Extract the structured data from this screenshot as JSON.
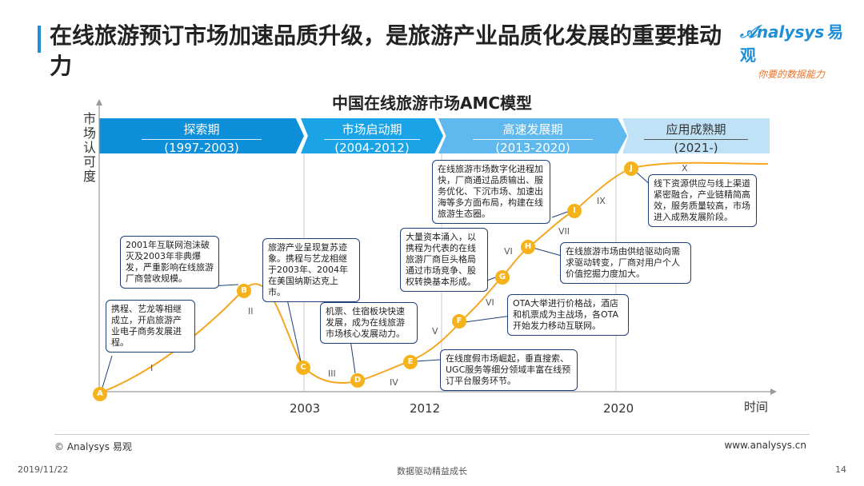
{
  "header": {
    "title": "在线旅游预订市场加速品质升级，是旅游产业品质化发展的重要推动力",
    "logo_text": "nalysys",
    "logo_cn": "易观",
    "logo_slogan": "你要的数据能力"
  },
  "diagram": {
    "title": "中国在线旅游市场AMC模型",
    "y_axis_label": "市场认可度",
    "x_axis_label": "时间",
    "phases": [
      {
        "name": "探索期",
        "years": "(1997-2003)",
        "color": "#0d8fd9"
      },
      {
        "name": "市场启动期",
        "years": "(2004-2012)",
        "color": "#1aa3e6"
      },
      {
        "name": "高速发展期",
        "years": "(2013-2020)",
        "color": "#5fb8ee"
      },
      {
        "name": "应用成熟期",
        "years": "(2021-)",
        "color": "#bfe2f7"
      }
    ],
    "years": [
      "2003",
      "2012",
      "2020"
    ],
    "roman": [
      "I",
      "II",
      "III",
      "IV",
      "V",
      "VI",
      "VI",
      "VII",
      "IX",
      "X"
    ],
    "markers": [
      "A",
      "B",
      "C",
      "D",
      "E",
      "F",
      "G",
      "H",
      "I",
      "J"
    ],
    "callouts": [
      {
        "id": "A",
        "text": "携程、艺龙等相继成立，开启旅游产业电子商务发展进程。"
      },
      {
        "id": "B",
        "text": "2001年互联网泡沫破灭及2003年非典爆发，严重影响在线旅游厂商营收规模。"
      },
      {
        "id": "C",
        "text": "旅游产业呈现复苏迹象。携程与艺龙相继于2003年、2004年在美国纳斯达克上市。"
      },
      {
        "id": "D",
        "text": "机票、住宿板块快速发展，成为在线旅游市场核心发展动力。"
      },
      {
        "id": "E",
        "text": "在线度假市场崛起，垂直搜索、UGC服务等细分领域丰富在线预订平台服务环节。"
      },
      {
        "id": "F",
        "text": "OTA大举进行价格战，酒店和机票成为主战场，各OTA开始发力移动互联网。"
      },
      {
        "id": "G",
        "text": "大量资本涌入，以携程为代表的在线旅游厂商巨头格局通过市场竞争、股权转换基本形成。"
      },
      {
        "id": "H",
        "text": "在线旅游市场由供给驱动向需求驱动转变，厂商对用户个人价值挖掘力度加大。"
      },
      {
        "id": "I",
        "text": "在线旅游市场数字化进程加快，厂商通过品质输出、服务优化、下沉市场、加速出海等多方面布局，构建在线旅游生态圈。"
      },
      {
        "id": "J",
        "text": "线下资源供应与线上渠道紧密融合，产业链精简高效，服务质量较高，市场进入成熟发展阶段。"
      }
    ]
  },
  "footer": {
    "copyright": "© Analysys 易观",
    "website": "www.analysys.cn",
    "date": "2019/11/22",
    "tagline": "数据驱动精益成长",
    "page": "14"
  }
}
